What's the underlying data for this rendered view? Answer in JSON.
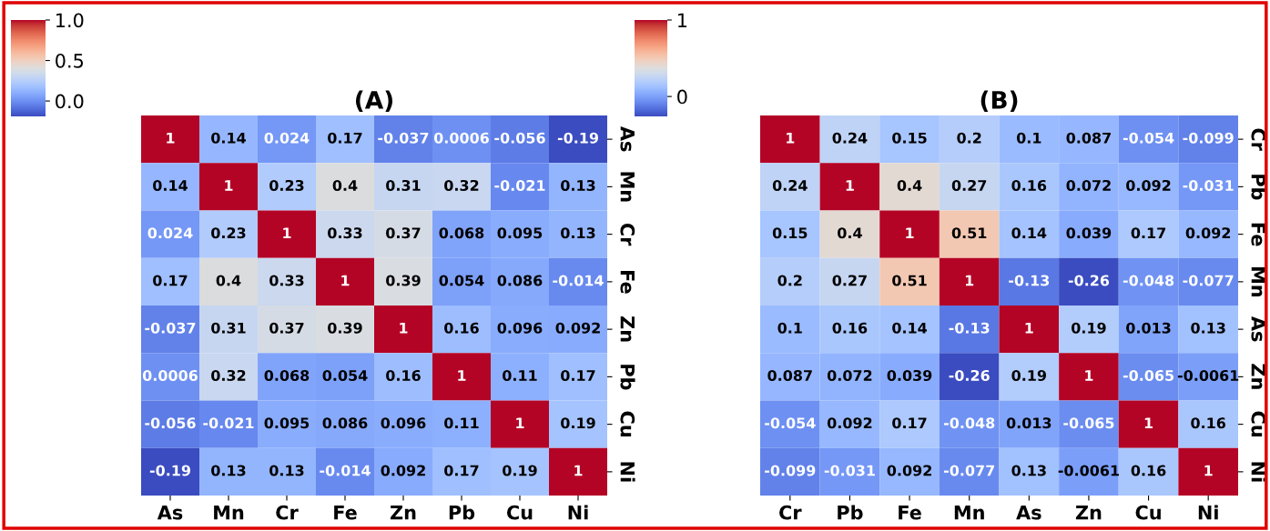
{
  "chart_data": [
    {
      "type": "heatmap",
      "title": "(A)",
      "categories": [
        "As",
        "Mn",
        "Cr",
        "Fe",
        "Zn",
        "Pb",
        "Cu",
        "Ni"
      ],
      "y_categories": [
        "As",
        "Mn",
        "Cr",
        "Fe",
        "Zn",
        "Pb",
        "Cu",
        "Ni"
      ],
      "cells": [
        [
          1,
          0.14,
          0.024,
          0.17,
          -0.037,
          0.0006,
          -0.056,
          -0.19
        ],
        [
          0.14,
          1,
          0.23,
          0.4,
          0.31,
          0.32,
          -0.021,
          0.13
        ],
        [
          0.024,
          0.23,
          1,
          0.33,
          0.37,
          0.068,
          0.095,
          0.13
        ],
        [
          0.17,
          0.4,
          0.33,
          1,
          0.39,
          0.054,
          0.086,
          -0.014
        ],
        [
          -0.037,
          0.31,
          0.37,
          0.39,
          1,
          0.16,
          0.096,
          0.092
        ],
        [
          0.0006,
          0.32,
          0.068,
          0.054,
          0.16,
          1,
          0.11,
          0.17
        ],
        [
          -0.056,
          -0.021,
          0.095,
          0.086,
          0.096,
          0.11,
          1,
          0.19
        ],
        [
          -0.19,
          0.13,
          0.13,
          -0.014,
          0.092,
          0.17,
          0.19,
          1
        ]
      ],
      "clim": [
        -0.19,
        1
      ],
      "cticks": [
        {
          "value": 0,
          "label": "0.0"
        },
        {
          "value": 0.5,
          "label": "0.5"
        },
        {
          "value": 1,
          "label": "1.0"
        }
      ],
      "data_labels": true
    },
    {
      "type": "heatmap",
      "title": "(B)",
      "categories": [
        "Cr",
        "Pb",
        "Fe",
        "Mn",
        "As",
        "Zn",
        "Cu",
        "Ni"
      ],
      "y_categories": [
        "Cr",
        "Pb",
        "Fe",
        "Mn",
        "As",
        "Zn",
        "Cu",
        "Ni"
      ],
      "cells": [
        [
          1,
          0.24,
          0.15,
          0.2,
          0.1,
          0.087,
          -0.054,
          -0.099
        ],
        [
          0.24,
          1,
          0.4,
          0.27,
          0.16,
          0.072,
          0.092,
          -0.031
        ],
        [
          0.15,
          0.4,
          1,
          0.51,
          0.14,
          0.039,
          0.17,
          0.092
        ],
        [
          0.2,
          0.27,
          0.51,
          1,
          -0.13,
          -0.26,
          -0.048,
          -0.077
        ],
        [
          0.1,
          0.16,
          0.14,
          -0.13,
          1,
          0.19,
          0.013,
          0.13
        ],
        [
          0.087,
          0.072,
          0.039,
          -0.26,
          0.19,
          1,
          -0.065,
          -0.0061
        ],
        [
          -0.054,
          0.092,
          0.17,
          -0.048,
          0.013,
          -0.065,
          1,
          0.16
        ],
        [
          -0.099,
          -0.031,
          0.092,
          -0.077,
          0.13,
          -0.0061,
          0.16,
          1
        ]
      ],
      "clim": [
        -0.26,
        1
      ],
      "cticks": [
        0,
        1
      ],
      "data_labels": true
    }
  ]
}
